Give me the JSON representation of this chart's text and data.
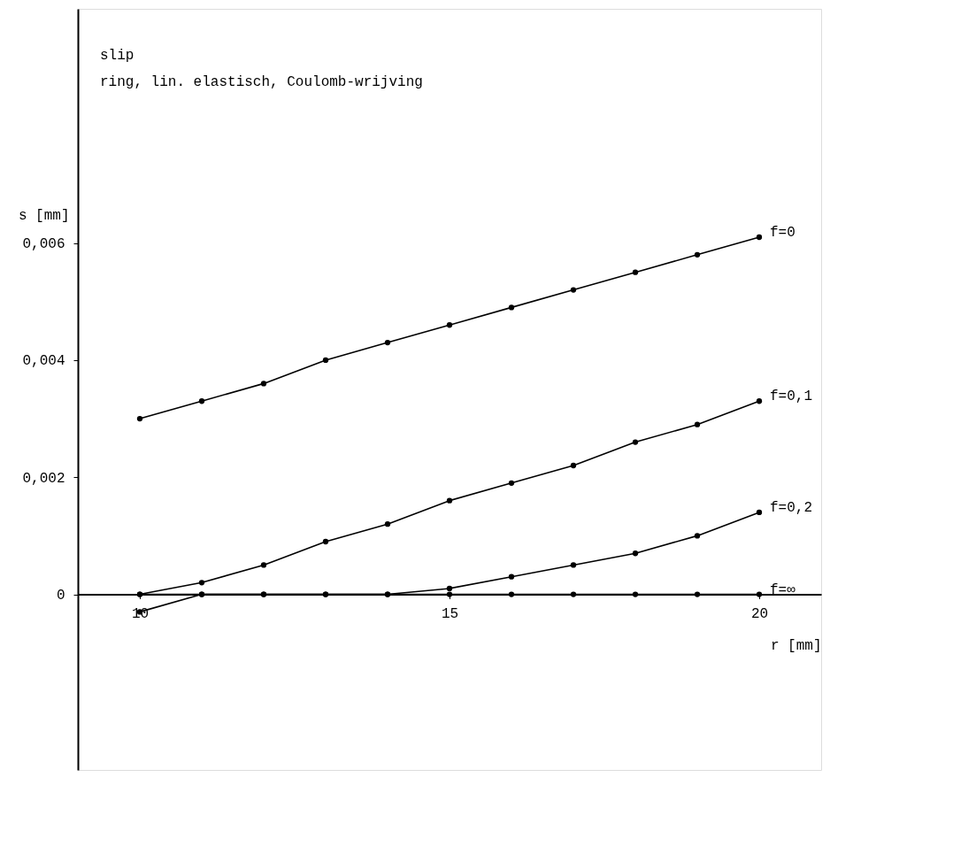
{
  "chart_data": {
    "type": "line",
    "title": "slip",
    "subtitle": "ring, lin. elastisch, Coulomb-wrijving",
    "xlabel": "r [mm]",
    "ylabel": "s [mm]",
    "x": [
      10,
      11,
      12,
      13,
      14,
      15,
      16,
      17,
      18,
      19,
      20
    ],
    "series": [
      {
        "name": "f=0",
        "color": "#000000",
        "values": [
          0.003,
          0.0033,
          0.0036,
          0.004,
          0.0043,
          0.0046,
          0.0049,
          0.0052,
          0.0055,
          0.0058,
          0.0061
        ]
      },
      {
        "name": "f=0,1",
        "color": "#000000",
        "values": [
          0.0,
          0.0002,
          0.0005,
          0.0009,
          0.0012,
          0.0016,
          0.0019,
          0.0022,
          0.0026,
          0.0029,
          0.0033
        ]
      },
      {
        "name": "f=0,2",
        "color": "#000000",
        "values": [
          0.0,
          0.0,
          0.0,
          0.0,
          0.0,
          0.0001,
          0.0003,
          0.0005,
          0.0007,
          0.001,
          0.0014
        ]
      },
      {
        "name": "f=∞",
        "color": "#000000",
        "values": [
          -0.0003,
          0.0,
          0.0,
          0.0,
          0.0,
          0.0,
          0.0,
          0.0,
          0.0,
          0.0,
          0.0
        ]
      }
    ],
    "xlim": [
      9,
      21
    ],
    "ylim": [
      -0.003,
      0.01
    ],
    "xticks": [
      10,
      15,
      20
    ],
    "yticks": [
      0,
      {
        "value": 0.002,
        "label": "0,002"
      },
      {
        "value": 0.004,
        "label": "0,004"
      },
      {
        "value": 0.006,
        "label": "0,006"
      }
    ],
    "grid": false,
    "marker": "circle",
    "line_style": "solid"
  }
}
